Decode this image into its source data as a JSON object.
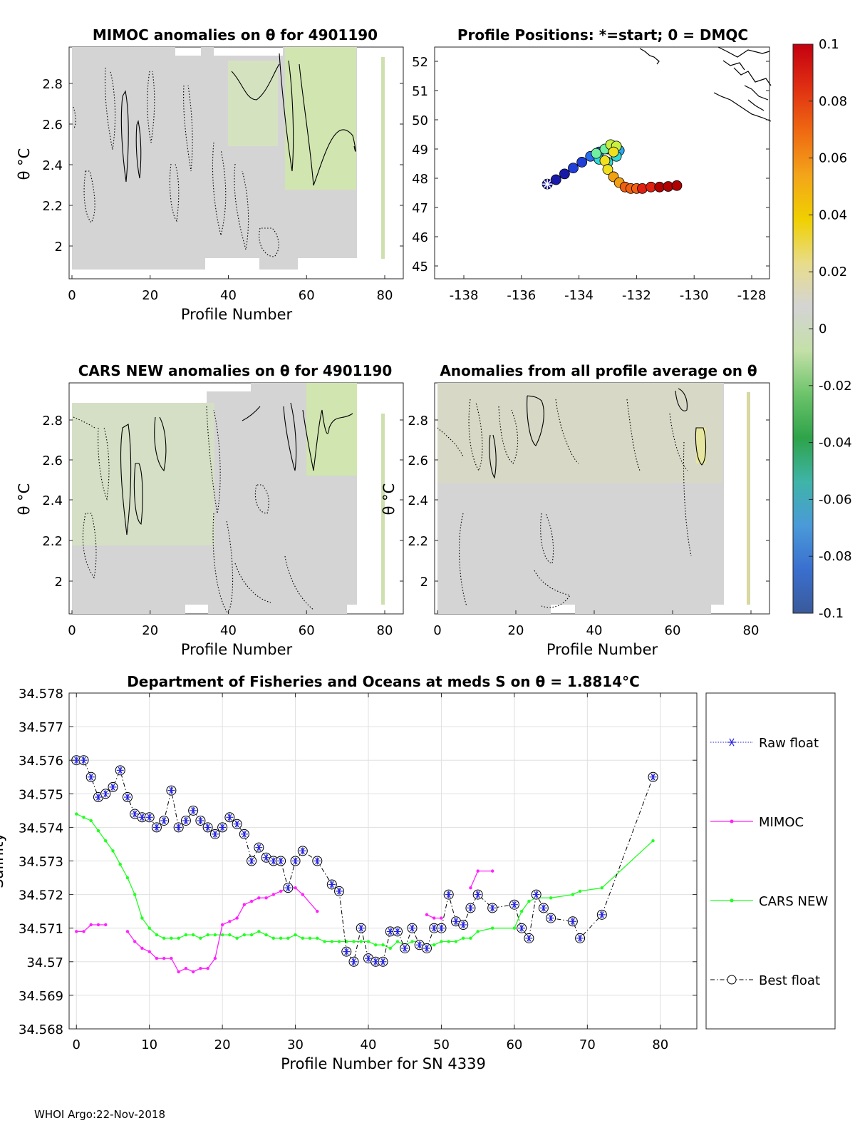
{
  "footer": "WHOI Argo:22-Nov-2018",
  "colors": {
    "field": "#d4d4d4",
    "green_tint": "#cfe8a8",
    "yellow_tint": "#e6e6a0",
    "raw_float": "#2222dd",
    "mimoc": "#ff22ff",
    "cars_new": "#22ff22",
    "best_float": "#000000",
    "grid": "#e0e0e0"
  },
  "colorbar": {
    "ticks": [
      "0.1",
      "0.08",
      "0.06",
      "0.04",
      "0.02",
      "0",
      "-0.02",
      "-0.04",
      "-0.06",
      "-0.08",
      "-0.1"
    ],
    "range": [
      -0.1,
      0.1
    ],
    "stops": [
      "#3a5a9a",
      "#3a6fcf",
      "#4a9ad8",
      "#3fb4a8",
      "#2ea34a",
      "#6cc36a",
      "#c4e0a8",
      "#d4d4d4",
      "#e8dc8a",
      "#f0d000",
      "#f3a51a",
      "#ef6a12",
      "#e03012",
      "#c40010"
    ]
  },
  "panel_mimoc": {
    "title": "MIMOC anomalies on θ  for 4901190",
    "xlabel": "Profile Number",
    "ylabel": "θ °C",
    "x_ticks": [
      "0",
      "20",
      "40",
      "60",
      "80"
    ],
    "y_ticks": [
      "2.8",
      "2.6",
      "2.4",
      "2.2",
      "2"
    ]
  },
  "panel_positions": {
    "title": "Profile Positions: *=start; 0 = DMQC",
    "x_ticks": [
      "-138",
      "-136",
      "-134",
      "-132",
      "-130",
      "-128"
    ],
    "y_ticks": [
      "52",
      "51",
      "50",
      "49",
      "48",
      "47",
      "46",
      "45"
    ],
    "track": {
      "lon": [
        -135.1,
        -134.8,
        -134.5,
        -134.2,
        -133.9,
        -133.6,
        -133.3,
        -133.0,
        -132.8,
        -132.6,
        -132.7,
        -133.0,
        -133.3,
        -133.4,
        -133.1,
        -132.9,
        -132.7,
        -132.8,
        -133.1,
        -133.0,
        -132.8,
        -132.6,
        -132.4,
        -132.2,
        -132.0,
        -131.8,
        -131.5,
        -131.2,
        -130.9,
        -130.6
      ],
      "lat": [
        47.8,
        47.95,
        48.15,
        48.35,
        48.55,
        48.75,
        48.9,
        49.0,
        49.1,
        48.95,
        48.75,
        48.55,
        48.65,
        48.85,
        49.0,
        49.15,
        49.1,
        48.9,
        48.6,
        48.3,
        48.05,
        47.85,
        47.7,
        47.65,
        47.65,
        47.65,
        47.7,
        47.7,
        47.72,
        47.75
      ]
    }
  },
  "panel_cars": {
    "title": "CARS NEW anomalies on θ for 4901190",
    "xlabel": "Profile Number",
    "ylabel": "θ °C",
    "x_ticks": [
      "0",
      "20",
      "40",
      "60",
      "80"
    ],
    "y_ticks": [
      "2.8",
      "2.6",
      "2.4",
      "2.2",
      "2"
    ]
  },
  "panel_allprofile": {
    "title": "Anomalies from all profile average on θ",
    "xlabel": "Profile Number",
    "ylabel": "θ °C",
    "x_ticks": [
      "0",
      "20",
      "40",
      "60",
      "80"
    ],
    "y_ticks": [
      "2.8",
      "2.6",
      "2.4",
      "2.2",
      "2"
    ]
  },
  "chart_data": {
    "type": "line",
    "title": "Department of Fisheries and Oceans at meds S on θ = 1.8814°C",
    "xlabel": "Profile Number for SN 4339",
    "ylabel": "Salinity",
    "xlim": [
      -1,
      85
    ],
    "ylim": [
      34.568,
      34.578
    ],
    "x_ticks": [
      "0",
      "10",
      "20",
      "30",
      "40",
      "50",
      "60",
      "70",
      "80"
    ],
    "y_ticks": [
      "34.578",
      "34.577",
      "34.576",
      "34.575",
      "34.574",
      "34.573",
      "34.572",
      "34.571",
      "34.57",
      "34.569",
      "34.568"
    ],
    "legend": [
      "Raw float",
      "MIMOC",
      "CARS NEW",
      "Best float"
    ],
    "legend_placement": "right, outside",
    "series": [
      {
        "name": "Best float",
        "x": [
          0,
          1,
          2,
          3,
          4,
          5,
          6,
          7,
          8,
          9,
          10,
          11,
          12,
          13,
          14,
          15,
          16,
          17,
          18,
          19,
          20,
          21,
          22,
          23,
          24,
          25,
          26,
          27,
          28,
          29,
          30,
          31,
          33,
          35,
          36,
          37,
          38,
          39,
          40,
          41,
          42,
          43,
          44,
          45,
          46,
          47,
          48,
          49,
          50,
          51,
          52,
          53,
          54,
          55,
          57,
          60,
          61,
          62,
          63,
          64,
          65,
          68,
          69,
          72,
          79
        ],
        "y": [
          34.576,
          34.576,
          34.5755,
          34.5749,
          34.575,
          34.5752,
          34.5757,
          34.5749,
          34.5744,
          34.5743,
          34.5743,
          34.574,
          34.5742,
          34.5751,
          34.574,
          34.5742,
          34.5745,
          34.5742,
          34.574,
          34.5738,
          34.574,
          34.5743,
          34.5741,
          34.5738,
          34.573,
          34.5734,
          34.5731,
          34.573,
          34.573,
          34.5722,
          34.573,
          34.5733,
          34.573,
          34.5723,
          34.5721,
          34.5703,
          34.57,
          34.571,
          34.5701,
          34.57,
          34.57,
          34.5709,
          34.5709,
          34.5704,
          34.571,
          34.5705,
          34.5704,
          34.571,
          34.571,
          34.572,
          34.5712,
          34.5711,
          34.5716,
          34.572,
          34.5716,
          34.5717,
          34.571,
          34.5707,
          34.572,
          34.5716,
          34.5713,
          34.5712,
          34.5707,
          34.5714,
          34.5755
        ]
      },
      {
        "name": "MIMOC",
        "segments": [
          {
            "x": [
              0,
              1,
              2,
              3,
              4
            ],
            "y": [
              34.5709,
              34.5709,
              34.5711,
              34.5711,
              34.5711
            ]
          },
          {
            "x": [
              7,
              8,
              9,
              10,
              11,
              12,
              13,
              14,
              15,
              16,
              17,
              18,
              19,
              20,
              21,
              22,
              23,
              24,
              25,
              26,
              27,
              28,
              29,
              30,
              31,
              33
            ],
            "y": [
              34.5709,
              34.5706,
              34.5704,
              34.5703,
              34.5701,
              34.5701,
              34.5701,
              34.5697,
              34.5698,
              34.5697,
              34.5698,
              34.5698,
              34.5701,
              34.5711,
              34.5712,
              34.5713,
              34.5717,
              34.5718,
              34.5719,
              34.5719,
              34.572,
              34.5721,
              34.5722,
              34.5722,
              34.572,
              34.5715
            ]
          },
          {
            "x": [
              48,
              49,
              50
            ],
            "y": [
              34.5714,
              34.5713,
              34.5713
            ]
          },
          {
            "x": [
              54,
              55,
              57
            ],
            "y": [
              34.5722,
              34.5727,
              34.5727
            ]
          }
        ]
      },
      {
        "name": "CARS NEW",
        "x": [
          0,
          1,
          2,
          3,
          4,
          5,
          6,
          7,
          8,
          9,
          10,
          11,
          12,
          13,
          14,
          15,
          16,
          17,
          18,
          19,
          20,
          21,
          22,
          23,
          24,
          25,
          26,
          27,
          28,
          29,
          30,
          31,
          32,
          33,
          34,
          35,
          36,
          37,
          38,
          39,
          40,
          41,
          42,
          43,
          44,
          45,
          46,
          47,
          48,
          49,
          50,
          51,
          52,
          53,
          54,
          55,
          57,
          60,
          61,
          62,
          63,
          65,
          68,
          69,
          72,
          79
        ],
        "y": [
          34.5744,
          34.5743,
          34.5742,
          34.5739,
          34.5736,
          34.5733,
          34.5729,
          34.5725,
          34.572,
          34.5713,
          34.571,
          34.5708,
          34.5707,
          34.5707,
          34.5707,
          34.5708,
          34.5708,
          34.5707,
          34.5708,
          34.5708,
          34.5708,
          34.5708,
          34.5707,
          34.5708,
          34.5708,
          34.5709,
          34.5708,
          34.5707,
          34.5707,
          34.5707,
          34.5708,
          34.5707,
          34.5707,
          34.5707,
          34.5706,
          34.5706,
          34.5706,
          34.5706,
          34.5706,
          34.5706,
          34.5706,
          34.5705,
          34.5705,
          34.5704,
          34.5706,
          34.5705,
          34.5706,
          34.5706,
          34.5705,
          34.5705,
          34.5706,
          34.5706,
          34.5706,
          34.5707,
          34.5707,
          34.5709,
          34.571,
          34.571,
          34.5715,
          34.5718,
          34.5719,
          34.5719,
          34.572,
          34.5721,
          34.5722,
          34.5736
        ]
      },
      {
        "name": "Raw float",
        "note": "plotted at the same positions as Best float (star markers)"
      }
    ]
  }
}
